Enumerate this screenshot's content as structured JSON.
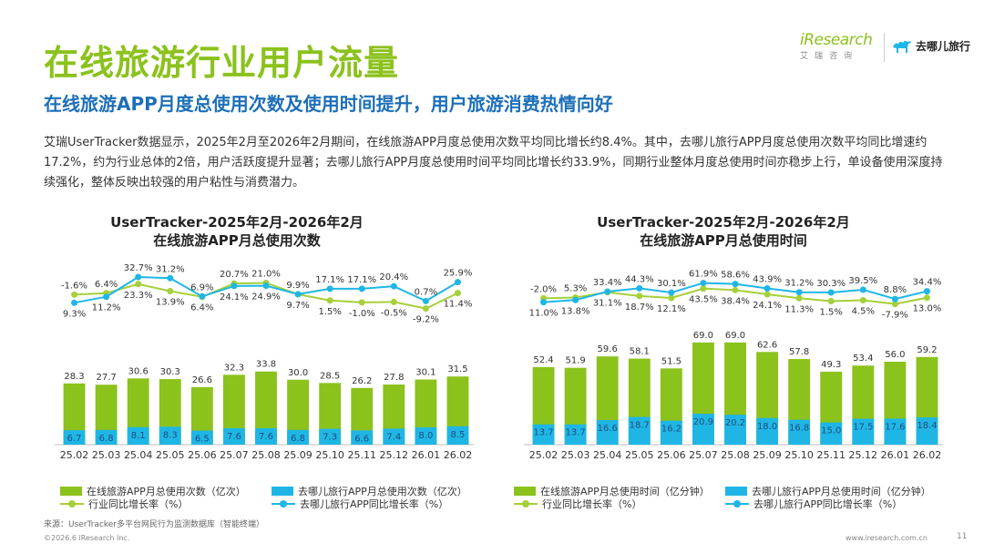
{
  "header": {
    "title": "在线旅游行业用户流量",
    "subtitle": "在线旅游APP月度总使用次数及使用时间提升，用户旅游消费热情向好",
    "body": "艾瑞UserTracker数据显示，2025年2月至2026年2月期间，在线旅游APP月度总使用次数平均同比增长约8.4%。其中，去哪儿旅行APP月度总使用次数平均同比增速约17.2%，约为行业总体的2倍，用户活跃度提升显著；去哪儿旅行APP月度总使用时间平均同比增长约33.9%，同期行业整体月度总使用时间亦稳步上行，单设备使用深度持续强化，整体反映出较强的用户粘性与消费潜力。"
  },
  "logos": {
    "iresearch_name": "iResearch",
    "iresearch_cn": "艾瑞咨询",
    "qunar_name": "去哪儿旅行"
  },
  "colors": {
    "title": "#8bc21c",
    "subtitle": "#1d6fb8",
    "bar_total": "#8bc21c",
    "bar_qunar": "#1fb6e6",
    "line_industry": "#a6cf3a",
    "line_qunar": "#1fb6e6"
  },
  "chart_data": [
    {
      "type": "bar",
      "title_line1": "UserTracker-2025年2月-2026年2月",
      "title_line2": "在线旅游APP月总使用次数",
      "categories": [
        "25.02",
        "25.03",
        "25.04",
        "25.05",
        "25.06",
        "25.07",
        "25.08",
        "25.09",
        "25.10",
        "25.11",
        "25.12",
        "26.01",
        "26.02"
      ],
      "series": [
        {
          "name": "在线旅游APP月总使用次数（亿次）",
          "kind": "bar",
          "values": [
            28.3,
            27.7,
            30.6,
            30.3,
            26.6,
            32.3,
            33.8,
            30.0,
            28.5,
            26.2,
            27.8,
            30.1,
            31.5
          ]
        },
        {
          "name": "去哪儿旅行APP月总使用次数（亿次）",
          "kind": "bar",
          "values": [
            6.7,
            6.8,
            8.1,
            8.3,
            6.5,
            7.6,
            7.6,
            6.8,
            7.3,
            6.6,
            7.4,
            8.0,
            8.5
          ]
        },
        {
          "name": "行业同比增长率（%）",
          "kind": "line",
          "values": [
            9.3,
            11.2,
            23.3,
            13.9,
            6.4,
            24.1,
            24.9,
            9.7,
            1.5,
            -1.0,
            -0.5,
            -9.2,
            11.4
          ]
        },
        {
          "name": "去哪儿旅行APP同比增长率（%）",
          "kind": "line",
          "values": [
            -1.6,
            6.4,
            32.7,
            31.2,
            6.9,
            20.7,
            21.0,
            9.9,
            17.1,
            17.1,
            20.4,
            0.7,
            25.9
          ]
        }
      ],
      "industry_labels": [
        "9.3%",
        "11.2%",
        "23.3%",
        "13.9%",
        "6.4%",
        "24.1%",
        "24.9%",
        "9.7%",
        "1.5%",
        "-1.0%",
        "-0.5%",
        "-9.2%",
        "11.4%"
      ],
      "qunar_labels": [
        "-1.6%",
        "6.4%",
        "32.7%",
        "31.2%",
        "6.9%",
        "20.7%",
        "21.0%",
        "9.9%",
        "17.1%",
        "17.1%",
        "20.4%",
        "0.7%",
        "25.9%"
      ],
      "ylim": [
        0,
        80
      ],
      "rate_ylim": [
        -40,
        40
      ]
    },
    {
      "type": "bar",
      "title_line1": "UserTracker-2025年2月-2026年2月",
      "title_line2": "在线旅游APP月总使用时间",
      "categories": [
        "25.02",
        "25.03",
        "25.04",
        "25.05",
        "25.06",
        "25.07",
        "25.08",
        "25.09",
        "25.10",
        "25.11",
        "25.12",
        "26.01",
        "26.02"
      ],
      "series": [
        {
          "name": "在线旅游APP月总使用时间（亿分钟）",
          "kind": "bar",
          "values": [
            52.4,
            51.9,
            59.6,
            58.1,
            51.5,
            69.0,
            69.0,
            62.6,
            57.8,
            49.3,
            53.4,
            56.0,
            59.2
          ]
        },
        {
          "name": "去哪儿旅行APP月总使用时间（亿分钟）",
          "kind": "bar",
          "values": [
            13.7,
            13.7,
            16.6,
            18.7,
            16.2,
            20.9,
            20.2,
            18.0,
            16.8,
            15.0,
            17.5,
            17.6,
            18.4
          ]
        },
        {
          "name": "行业同比增长率（%）",
          "kind": "line",
          "values": [
            11.0,
            13.8,
            31.1,
            18.7,
            12.1,
            43.5,
            38.4,
            24.1,
            11.3,
            1.5,
            4.5,
            -7.9,
            13.0
          ]
        },
        {
          "name": "去哪儿旅行APP同比增长率（%）",
          "kind": "line",
          "values": [
            -2.0,
            5.3,
            33.4,
            44.3,
            30.1,
            61.9,
            58.6,
            43.9,
            31.2,
            30.3,
            39.5,
            8.8,
            34.4
          ]
        }
      ],
      "industry_labels": [
        "11.0%",
        "13.8%",
        "31.1%",
        "18.7%",
        "12.1%",
        "43.5%",
        "38.4%",
        "24.1%",
        "11.3%",
        "1.5%",
        "4.5%",
        "-7.9%",
        "13.0%"
      ],
      "qunar_labels": [
        "-2.0%",
        "5.3%",
        "33.4%",
        "44.3%",
        "30.1%",
        "61.9%",
        "58.6%",
        "43.9%",
        "31.2%",
        "30.3%",
        "39.5%",
        "8.8%",
        "34.4%"
      ],
      "ylim": [
        0,
        80
      ],
      "rate_ylim": [
        -100,
        100
      ]
    }
  ],
  "legend": {
    "left": [
      "在线旅游APP月总使用次数（亿次）",
      "去哪儿旅行APP月总使用次数（亿次）",
      "行业同比增长率（%）",
      "去哪儿旅行APP同比增长率（%）"
    ],
    "right": [
      "在线旅游APP月总使用时间（亿分钟）",
      "去哪儿旅行APP月总使用时间（亿分钟）",
      "行业同比增长率（%）",
      "去哪儿旅行APP同比增长率（%）"
    ]
  },
  "footer": {
    "source": "来源：UserTracker多平台网民行为监测数据库（智能终端）",
    "copyright": "©2026.6 iResearch Inc.",
    "url": "www.iresearch.com.cn",
    "page": "11"
  }
}
